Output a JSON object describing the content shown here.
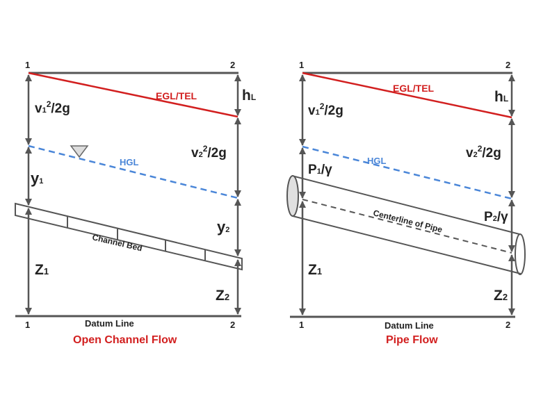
{
  "colors": {
    "egl": "#d21f1f",
    "hgl": "#4a86d8",
    "line": "#555555",
    "title": "#d21f1f"
  },
  "section_labels": {
    "one": "1",
    "two": "2"
  },
  "datum_label": "Datum Line",
  "egl_label": "EGL/TEL",
  "hgl_label": "HGL",
  "head_loss": {
    "main": "h",
    "sub": "L"
  },
  "velocity_head_1": {
    "v": "v",
    "sub": "1",
    "sup": "2",
    "rest": "/2g"
  },
  "velocity_head_2": {
    "v": "v",
    "sub": "2",
    "sup": "2",
    "rest": "/2g"
  },
  "elev_1": {
    "z": "Z",
    "sub": "1"
  },
  "elev_2": {
    "z": "Z",
    "sub": "2"
  },
  "open_channel": {
    "title": "Open Channel Flow",
    "bed_label": "Channel Bed",
    "depth_1": {
      "y": "y",
      "sub": "1"
    },
    "depth_2": {
      "y": "y",
      "sub": "2"
    }
  },
  "pipe": {
    "title": "Pipe Flow",
    "centerline_label": "Centerline of Pipe",
    "pressure_1": {
      "p": "P",
      "sub": "1",
      "rest": "/γ"
    },
    "pressure_2": {
      "p": "P",
      "sub": "2",
      "rest": "/γ"
    }
  }
}
